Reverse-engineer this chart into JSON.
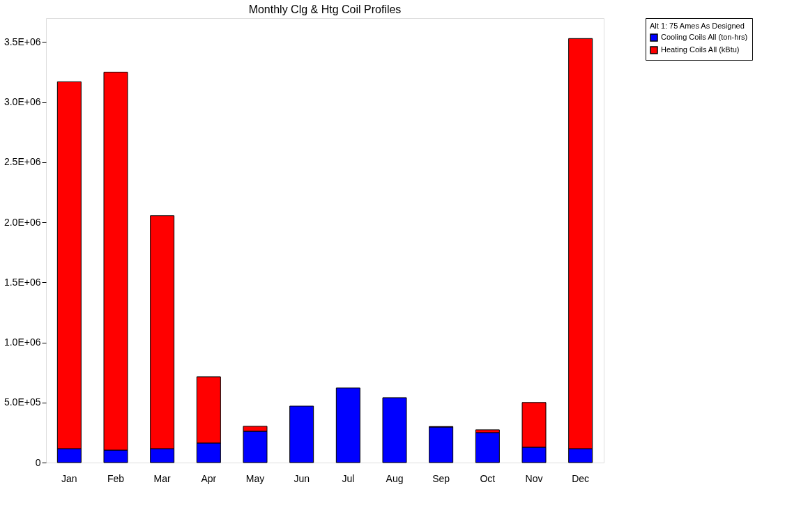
{
  "chart_data": {
    "type": "bar",
    "title": "Monthly Clg & Htg Coil Profiles",
    "legend_title": "Alt 1: 75 Ames As Designed",
    "stacked": true,
    "legend": "top right",
    "grid": false,
    "categories": [
      "Jan",
      "Feb",
      "Mar",
      "Apr",
      "May",
      "Jun",
      "Jul",
      "Aug",
      "Sep",
      "Oct",
      "Nov",
      "Dec"
    ],
    "series": [
      {
        "name": "Cooling Coils All (ton-hrs)",
        "color": "#0000ff",
        "values": [
          116000,
          104000,
          116000,
          163000,
          261000,
          470000,
          621000,
          540000,
          296000,
          250000,
          128000,
          116000
        ]
      },
      {
        "name": "Heating Coils All (kBtu)",
        "color": "#ff0000",
        "values": [
          3054000,
          3146000,
          1939000,
          551000,
          41000,
          0,
          0,
          0,
          4000,
          23000,
          372000,
          3414000
        ]
      }
    ],
    "ylim": [
      0,
      3700000
    ],
    "yticks": [
      0,
      {
        "value": 500000,
        "label": "5.0E+05"
      },
      {
        "value": 1000000,
        "label": "1.0E+06"
      },
      {
        "value": 1500000,
        "label": "1.5E+06"
      },
      {
        "value": 2000000,
        "label": "2.0E+06"
      },
      {
        "value": 2500000,
        "label": "2.5E+06"
      },
      {
        "value": 3000000,
        "label": "3.0E+06"
      },
      {
        "value": 3500000,
        "label": "3.5E+06"
      }
    ]
  }
}
